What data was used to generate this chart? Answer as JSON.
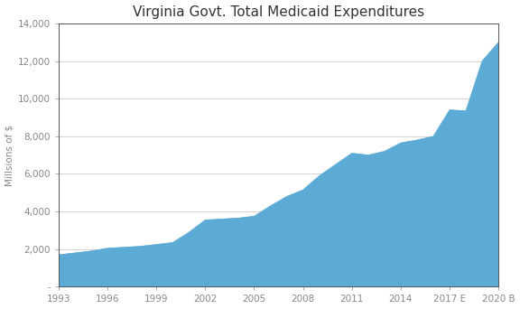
{
  "title": "Virginia Govt. Total Medicaid Expenditures",
  "ylabel": "Millsions of $",
  "x_labels": [
    "1993",
    "1996",
    "1999",
    "2002",
    "2005",
    "2008",
    "2011",
    "2014",
    "2017 E",
    "2020 B"
  ],
  "years": [
    1993,
    1994,
    1995,
    1996,
    1997,
    1998,
    1999,
    2000,
    2001,
    2002,
    2003,
    2004,
    2005,
    2006,
    2007,
    2008,
    2009,
    2010,
    2011,
    2012,
    2013,
    2014,
    2015,
    2016,
    2017,
    2018,
    2019,
    2020
  ],
  "values": [
    1700,
    1800,
    1900,
    2050,
    2100,
    2150,
    2250,
    2350,
    2900,
    3550,
    3600,
    3650,
    3750,
    4300,
    4800,
    5150,
    5900,
    6500,
    7100,
    7000,
    7200,
    7650,
    7800,
    8000,
    9400,
    9350,
    12000,
    13000
  ],
  "fill_color": "#5BABD6",
  "line_color": "#5BABD6",
  "ylim": [
    0,
    14000
  ],
  "yticks": [
    0,
    2000,
    4000,
    6000,
    8000,
    10000,
    12000,
    14000
  ],
  "grid_color": "#CCCCCC",
  "title_fontsize": 11,
  "tick_label_color": "#888888",
  "spine_color": "#555555",
  "background_color": "#FFFFFF"
}
